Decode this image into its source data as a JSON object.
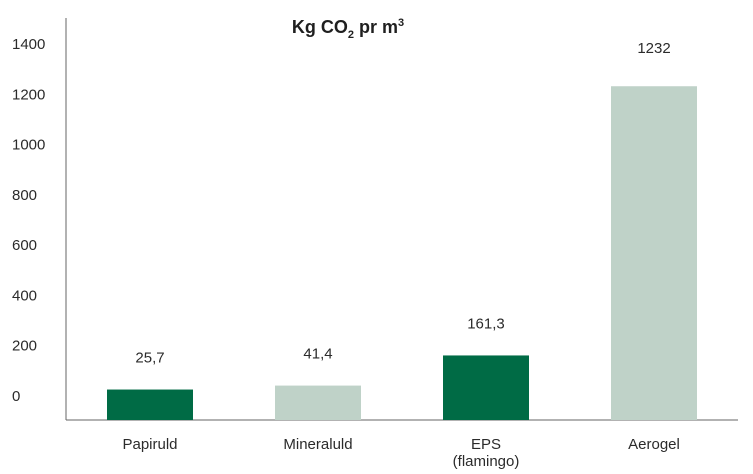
{
  "chart_data": {
    "type": "bar",
    "title": {
      "prefix": "Kg CO",
      "subscript": "2",
      "middle": " pr m",
      "superscript": "3"
    },
    "xlabel": "",
    "ylabel": "",
    "ylim": [
      0,
      1400
    ],
    "yticks": [
      "0",
      "200",
      "400",
      "600",
      "800",
      "1000",
      "1200",
      "1400"
    ],
    "grid": false,
    "categories": [
      [
        "Papiruld"
      ],
      [
        "Mineraluld"
      ],
      [
        "EPS",
        "(flamingo)"
      ],
      [
        "Aerogel"
      ]
    ],
    "values": [
      25.7,
      41.4,
      161.3,
      1232
    ],
    "value_labels": [
      "25,7",
      "41,4",
      "161,3",
      "1232"
    ],
    "bar_colors": [
      "#006b45",
      "#bfd2c8",
      "#006b45",
      "#bfd2c8"
    ]
  }
}
